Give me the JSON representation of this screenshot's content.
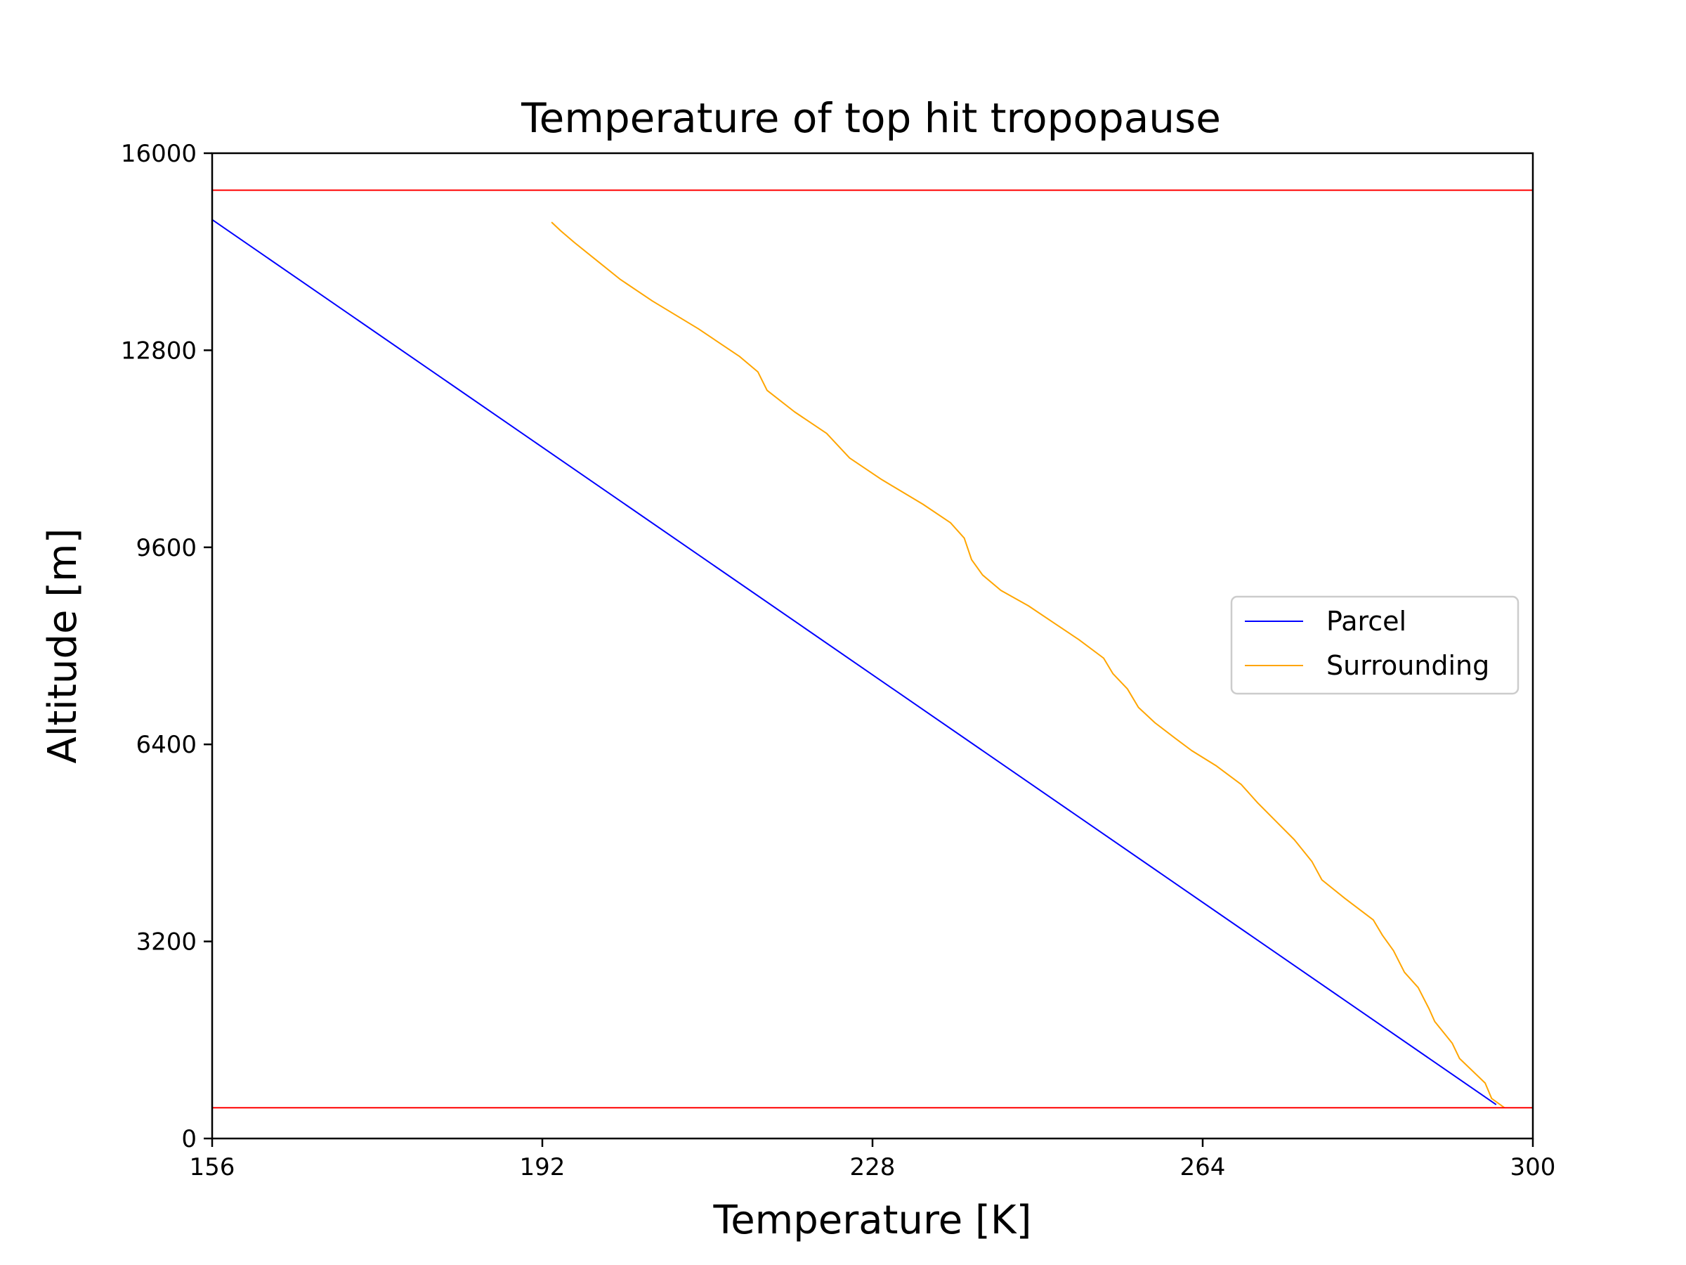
{
  "chart_data": {
    "type": "line",
    "title": "Temperature of top hit tropopause",
    "xlabel": "Temperature [K]",
    "ylabel": "Altitude [m]",
    "xlim": [
      156,
      300
    ],
    "ylim": [
      0,
      16000
    ],
    "xticks": [
      "156",
      "192",
      "228",
      "264",
      "300"
    ],
    "yticks": [
      "0",
      "3200",
      "6400",
      "9600",
      "12800",
      "16000"
    ],
    "grid": false,
    "legend_position": "center-right",
    "series": [
      {
        "name": "Parcel",
        "color": "#0000ff",
        "points": [
          [
            296.0,
            550
          ],
          [
            156.0,
            14920
          ]
        ]
      },
      {
        "name": "Surrounding",
        "color": "#ffa500",
        "points": [
          [
            296.9,
            500
          ],
          [
            295.5,
            650
          ],
          [
            294.8,
            900
          ],
          [
            292.0,
            1300
          ],
          [
            291.2,
            1550
          ],
          [
            289.3,
            1900
          ],
          [
            288.7,
            2100
          ],
          [
            287.5,
            2450
          ],
          [
            286.0,
            2700
          ],
          [
            284.8,
            3050
          ],
          [
            283.6,
            3300
          ],
          [
            282.6,
            3550
          ],
          [
            279.5,
            3900
          ],
          [
            277.0,
            4200
          ],
          [
            275.9,
            4500
          ],
          [
            274.0,
            4850
          ],
          [
            272.0,
            5150
          ],
          [
            270.0,
            5450
          ],
          [
            268.2,
            5750
          ],
          [
            265.5,
            6050
          ],
          [
            262.8,
            6300
          ],
          [
            261.0,
            6500
          ],
          [
            258.8,
            6750
          ],
          [
            257.0,
            7000
          ],
          [
            255.8,
            7300
          ],
          [
            254.2,
            7550
          ],
          [
            253.2,
            7800
          ],
          [
            250.5,
            8100
          ],
          [
            248.0,
            8350
          ],
          [
            245.0,
            8650
          ],
          [
            242.0,
            8900
          ],
          [
            240.0,
            9150
          ],
          [
            238.8,
            9400
          ],
          [
            238.0,
            9750
          ],
          [
            236.5,
            10000
          ],
          [
            233.5,
            10300
          ],
          [
            229.0,
            10700
          ],
          [
            225.5,
            11050
          ],
          [
            223.0,
            11450
          ],
          [
            219.5,
            11800
          ],
          [
            216.5,
            12150
          ],
          [
            215.5,
            12450
          ],
          [
            213.5,
            12700
          ],
          [
            209.0,
            13150
          ],
          [
            204.0,
            13600
          ],
          [
            200.5,
            13950
          ],
          [
            198.0,
            14250
          ],
          [
            195.5,
            14550
          ],
          [
            194.0,
            14740
          ],
          [
            193.0,
            14880
          ]
        ]
      },
      {
        "name": "",
        "color": "#ff0000",
        "points": [
          [
            156,
            15400
          ],
          [
            300,
            15400
          ]
        ]
      },
      {
        "name": "",
        "color": "#ff0000",
        "points": [
          [
            156,
            500
          ],
          [
            300,
            500
          ]
        ]
      }
    ]
  }
}
